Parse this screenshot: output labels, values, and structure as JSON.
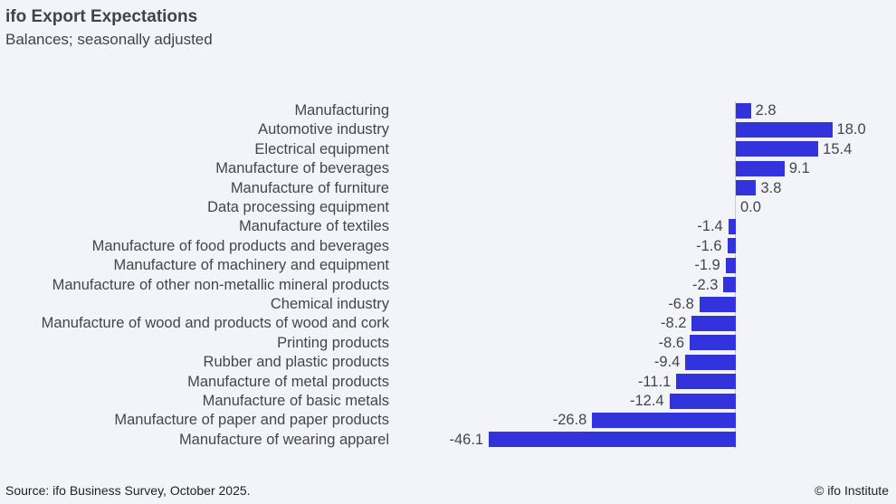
{
  "header": {
    "title": "ifo Export Expectations",
    "subtitle": "Balances; seasonally adjusted"
  },
  "footer": {
    "source": "Source: ifo Business Survey, October 2025.",
    "copyright": "© ifo Institute"
  },
  "chart_data": {
    "type": "bar",
    "orientation": "horizontal",
    "title": "ifo Export Expectations",
    "subtitle": "Balances; seasonally adjusted",
    "bar_color": "#3333dd",
    "grid": false,
    "categories": [
      "Manufacturing",
      "Automotive industry",
      "Electrical equipment",
      "Manufacture of beverages",
      "Manufacture of furniture",
      "Data processing equipment",
      "Manufacture of textiles",
      "Manufacture of food products and beverages",
      "Manufacture of machinery and equipment",
      "Manufacture of other non-metallic mineral products",
      "Chemical industry",
      "Manufacture of wood and products of wood and cork",
      "Printing products",
      "Rubber and plastic products",
      "Manufacture of metal products",
      "Manufacture of basic metals",
      "Manufacture of paper and paper products",
      "Manufacture of wearing apparel"
    ],
    "values": [
      2.8,
      18.0,
      15.4,
      9.1,
      3.8,
      0.0,
      -1.4,
      -1.6,
      -1.9,
      -2.3,
      -6.8,
      -8.2,
      -8.6,
      -9.4,
      -11.1,
      -12.4,
      -26.8,
      -46.1
    ],
    "labels": [
      "2.8",
      "18.0",
      "15.4",
      "9.1",
      "3.8",
      "0.0",
      "-1.4",
      "-1.6",
      "-1.9",
      "-2.3",
      "-6.8",
      "-8.2",
      "-8.6",
      "-9.4",
      "-11.1",
      "-12.4",
      "-26.8",
      "-46.1"
    ]
  }
}
